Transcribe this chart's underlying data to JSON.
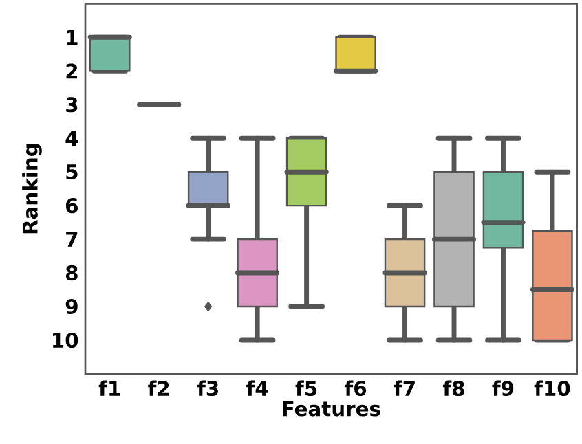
{
  "chart_data": {
    "type": "box",
    "xlabel": "Features",
    "ylabel": "Ranking",
    "categories": [
      "f1",
      "f2",
      "f3",
      "f4",
      "f5",
      "f6",
      "f7",
      "f8",
      "f9",
      "f10"
    ],
    "colors": [
      "#72b8a0",
      "#555555",
      "#94a4c8",
      "#dc96c3",
      "#a5cc62",
      "#e3c944",
      "#dbc29b",
      "#b3b3b3",
      "#72b8a0",
      "#ea9674"
    ],
    "boxes": [
      {
        "low": 1,
        "q1": 1,
        "median": 1,
        "q3": 2,
        "high": 2
      },
      {
        "low": 3,
        "q1": 3,
        "median": 3,
        "q3": 3,
        "high": 3
      },
      {
        "low": 4,
        "q1": 5,
        "median": 6,
        "q3": 6,
        "high": 7,
        "outliers": [
          9
        ]
      },
      {
        "low": 4,
        "q1": 7,
        "median": 8,
        "q3": 9,
        "high": 10
      },
      {
        "low": 4,
        "q1": 4,
        "median": 5,
        "q3": 6,
        "high": 9
      },
      {
        "low": 1,
        "q1": 1,
        "median": 2,
        "q3": 2,
        "high": 2
      },
      {
        "low": 6,
        "q1": 7,
        "median": 8,
        "q3": 9,
        "high": 10
      },
      {
        "low": 4,
        "q1": 5,
        "median": 7,
        "q3": 9,
        "high": 10
      },
      {
        "low": 4,
        "q1": 5,
        "median": 6.5,
        "q3": 7.25,
        "high": 10
      },
      {
        "low": 5,
        "q1": 6.75,
        "median": 8.5,
        "q3": 10,
        "high": 10
      }
    ],
    "ylim": [
      11,
      0
    ],
    "yticks": [
      1,
      2,
      3,
      4,
      5,
      6,
      7,
      8,
      9,
      10
    ]
  }
}
